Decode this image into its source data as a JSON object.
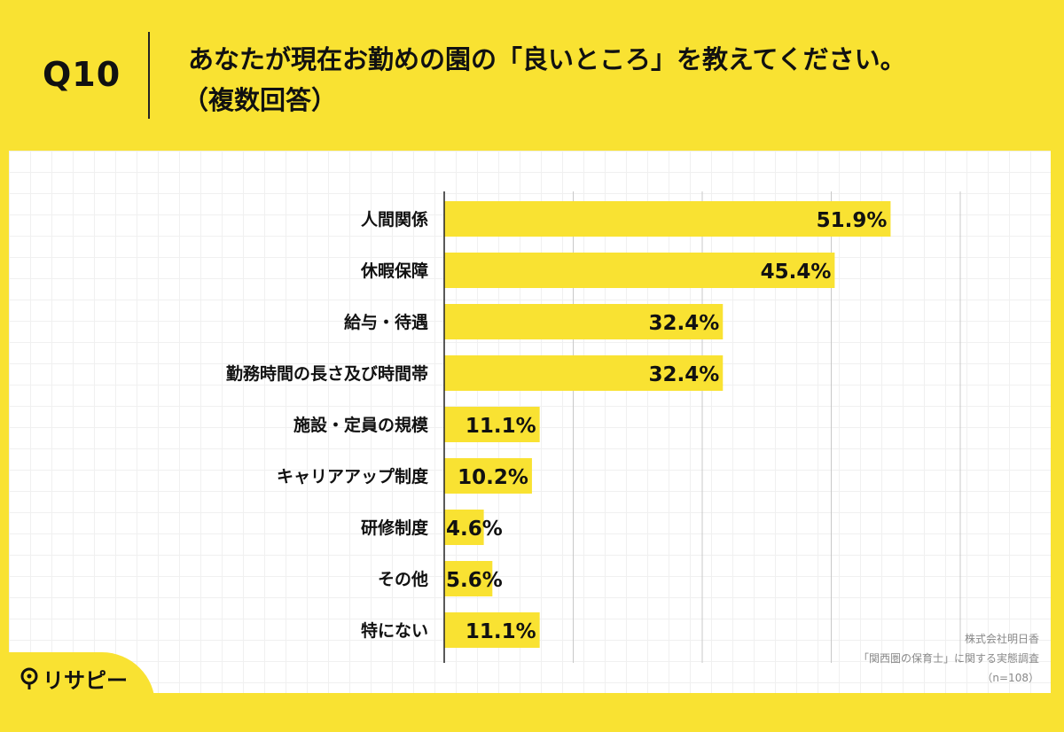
{
  "header": {
    "qnum": "Q10",
    "title": "あなたが現在お勤めの園の「良いところ」を教えてください。",
    "subtitle": "（複数回答）"
  },
  "chart_data": {
    "type": "bar",
    "orientation": "horizontal",
    "categories": [
      "人間関係",
      "休暇保障",
      "給与・待遇",
      "勤務時間の長さ及び時間帯",
      "施設・定員の規模",
      "キャリアアップ制度",
      "研修制度",
      "その他",
      "特にない"
    ],
    "values": [
      51.9,
      45.4,
      32.4,
      32.4,
      11.1,
      10.2,
      4.6,
      5.6,
      11.1
    ],
    "value_labels": [
      "51.9%",
      "45.4%",
      "32.4%",
      "32.4%",
      "11.1%",
      "10.2%",
      "4.6%",
      "5.6%",
      "11.1%"
    ],
    "xlim": [
      0,
      60
    ],
    "grid_interval": 15,
    "bar_color": "#f9e232",
    "grid": true
  },
  "source": {
    "company": "株式会社明日香",
    "survey": "「関西圏の保育士」に関する実態調査",
    "n": "（n=108）"
  },
  "logo": {
    "text": "リサピー",
    "icon": "pin-icon"
  },
  "colors": {
    "background": "#f9e232",
    "panel": "#ffffff",
    "bar": "#f9e232"
  }
}
